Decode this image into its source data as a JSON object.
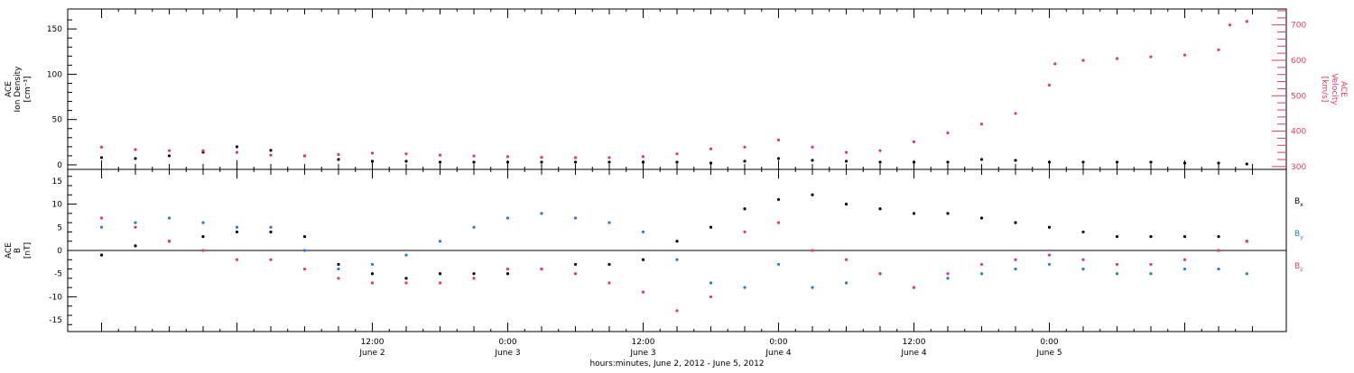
{
  "colors": {
    "axis": "#000000",
    "density": "#000000",
    "velocity": "#e8385f",
    "bx": "#000000",
    "by": "#1e7fd8",
    "bz": "#e8385f"
  },
  "chart_data": [
    {
      "type": "scatter",
      "panel": "plasma",
      "left_axis_label": [
        "ACE",
        "Ion Density",
        "[cm⁻³]"
      ],
      "right_axis_label": [
        "ACE",
        "Velocity",
        "[km/s]"
      ],
      "left_ylim": [
        -5,
        172
      ],
      "left_ticks": [
        "0",
        "50",
        "100",
        "150"
      ],
      "right_ylim": [
        292,
        745
      ],
      "right_ticks": [
        "300",
        "400",
        "500",
        "600",
        "700"
      ],
      "series": [
        {
          "axis": "left",
          "x": [
            -12,
            -9,
            -6,
            -3,
            0,
            3,
            6,
            9,
            12,
            15,
            18,
            21,
            24,
            27,
            30,
            33,
            36,
            39,
            42,
            45,
            48,
            51,
            54,
            57,
            60,
            63,
            66,
            69,
            72,
            75,
            78,
            81,
            84,
            87,
            89.5
          ],
          "y": [
            8,
            7,
            10,
            14,
            20,
            16,
            10,
            6,
            4,
            4,
            3,
            3,
            3,
            3,
            3,
            3,
            3,
            3,
            2,
            4,
            7,
            5,
            4,
            3,
            3,
            3,
            6,
            5,
            3,
            3,
            3,
            3,
            2,
            2,
            1
          ]
        },
        {
          "axis": "right",
          "x": [
            -12,
            -9,
            -6,
            -3,
            0,
            3,
            6,
            9,
            12,
            15,
            18,
            21,
            24,
            27,
            30,
            33,
            36,
            39,
            42,
            45,
            48,
            51,
            54,
            57,
            60,
            63,
            66,
            69,
            72,
            72.5,
            75,
            78,
            81,
            84,
            87,
            88,
            89.5
          ],
          "y": [
            355,
            348,
            345,
            345,
            340,
            332,
            330,
            334,
            338,
            336,
            332,
            330,
            328,
            326,
            325,
            325,
            328,
            336,
            350,
            355,
            375,
            355,
            340,
            345,
            370,
            395,
            420,
            450,
            530,
            590,
            600,
            605,
            610,
            615,
            630,
            700,
            710
          ]
        }
      ]
    },
    {
      "type": "scatter",
      "panel": "magnetic",
      "left_axis_label": [
        "ACE",
        "B",
        "[nT]"
      ],
      "ylim": [
        -17.5,
        17.5
      ],
      "yticks": [
        "-15",
        "-10",
        "-5",
        "0",
        "5",
        "10",
        "15"
      ],
      "x_ticks": [
        {
          "x": 12,
          "line1": "12:00",
          "line2": "June 2"
        },
        {
          "x": 24,
          "line1": "0:00",
          "line2": "June 3"
        },
        {
          "x": 36,
          "line1": "12:00",
          "line2": "June 3"
        },
        {
          "x": 48,
          "line1": "0:00",
          "line2": "June 4"
        },
        {
          "x": 60,
          "line1": "12:00",
          "line2": "June 4"
        },
        {
          "x": 72,
          "line1": "0:00",
          "line2": "June 5"
        }
      ],
      "xlim": [
        -15,
        93
      ],
      "xlabel": "hours:minutes, June  2, 2012 - June  5, 2012",
      "series": [
        {
          "name": "Bx",
          "label_main": "B",
          "label_sub": "x",
          "x": [
            -12,
            -9,
            -6,
            -3,
            0,
            3,
            6,
            9,
            12,
            15,
            18,
            21,
            24,
            27,
            30,
            33,
            36,
            39,
            42,
            45,
            48,
            51,
            54,
            57,
            60,
            63,
            66,
            69,
            72,
            75,
            78,
            81,
            84,
            87,
            89.5
          ],
          "y": [
            -1,
            1,
            2,
            3,
            4,
            4,
            3,
            -3,
            -5,
            -6,
            -5,
            -5,
            -5,
            -4,
            -3,
            -3,
            -2,
            2,
            5,
            9,
            11,
            12,
            10,
            9,
            8,
            8,
            7,
            6,
            5,
            4,
            3,
            3,
            3,
            3,
            2
          ]
        },
        {
          "name": "By",
          "label_main": "B",
          "label_sub": "y",
          "x": [
            -12,
            -9,
            -6,
            -3,
            0,
            3,
            6,
            9,
            12,
            15,
            18,
            21,
            24,
            27,
            30,
            33,
            36,
            39,
            42,
            45,
            48,
            51,
            54,
            57,
            60,
            63,
            66,
            69,
            72,
            75,
            78,
            81,
            84,
            87,
            89.5
          ],
          "y": [
            5,
            6,
            7,
            6,
            5,
            5,
            0,
            -4,
            -3,
            -1,
            2,
            5,
            7,
            8,
            7,
            6,
            4,
            -2,
            -7,
            -8,
            -3,
            -8,
            -7,
            -5,
            -8,
            -6,
            -5,
            -4,
            -3,
            -4,
            -5,
            -5,
            -4,
            -4,
            -5
          ]
        },
        {
          "name": "Bz",
          "label_main": "B",
          "label_sub": "z",
          "x": [
            -12,
            -9,
            -6,
            -3,
            0,
            3,
            6,
            9,
            12,
            15,
            18,
            21,
            24,
            27,
            30,
            33,
            36,
            39,
            42,
            45,
            48,
            51,
            54,
            57,
            60,
            63,
            66,
            69,
            72,
            75,
            78,
            81,
            84,
            87,
            89.5
          ],
          "y": [
            7,
            5,
            2,
            0,
            -2,
            -2,
            -4,
            -6,
            -7,
            -7,
            -7,
            -6,
            -4,
            -4,
            -5,
            -7,
            -9,
            -13,
            -10,
            4,
            6,
            0,
            -2,
            -5,
            -8,
            -5,
            -3,
            -2,
            -1,
            -2,
            -3,
            -3,
            -2,
            0,
            2
          ]
        }
      ]
    }
  ]
}
